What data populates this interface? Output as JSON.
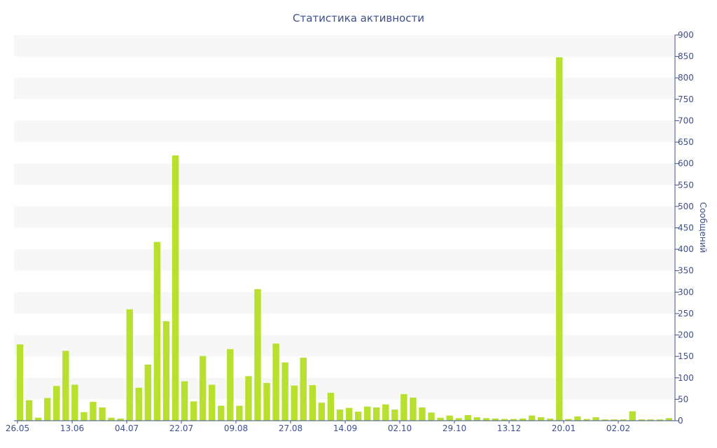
{
  "chart_data": {
    "type": "bar",
    "title": "Статистика активности",
    "xlabel": "",
    "ylabel": "Сообщений",
    "ylim": [
      0,
      900
    ],
    "y_ticks": [
      0,
      50,
      100,
      150,
      200,
      250,
      300,
      350,
      400,
      450,
      500,
      550,
      600,
      650,
      700,
      750,
      800,
      850,
      900
    ],
    "x_tick_labels": [
      "26.05",
      "13.06",
      "04.07",
      "22.07",
      "09.08",
      "27.08",
      "14.09",
      "02.10",
      "29.10",
      "13.12",
      "20.01",
      "02.02"
    ],
    "y_axis_side": "right",
    "grid": "alternating horizontal bands",
    "colors": {
      "bar": "#b8e02e",
      "text": "#3d4f8c",
      "band": "#f7f7f7"
    },
    "values": [
      178,
      48,
      7,
      53,
      81,
      163,
      84,
      20,
      44,
      31,
      7,
      5,
      260,
      77,
      131,
      417,
      232,
      619,
      92,
      45,
      151,
      84,
      35,
      167,
      35,
      104,
      307,
      88,
      180,
      136,
      82,
      147,
      83,
      42,
      65,
      26,
      30,
      21,
      33,
      31,
      38,
      26,
      62,
      54,
      31,
      19,
      7,
      12,
      6,
      13,
      8,
      6,
      5,
      4,
      4,
      5,
      12,
      8,
      5,
      848,
      4,
      10,
      4,
      8,
      3,
      3,
      3,
      22,
      3,
      3,
      3,
      6
    ]
  }
}
